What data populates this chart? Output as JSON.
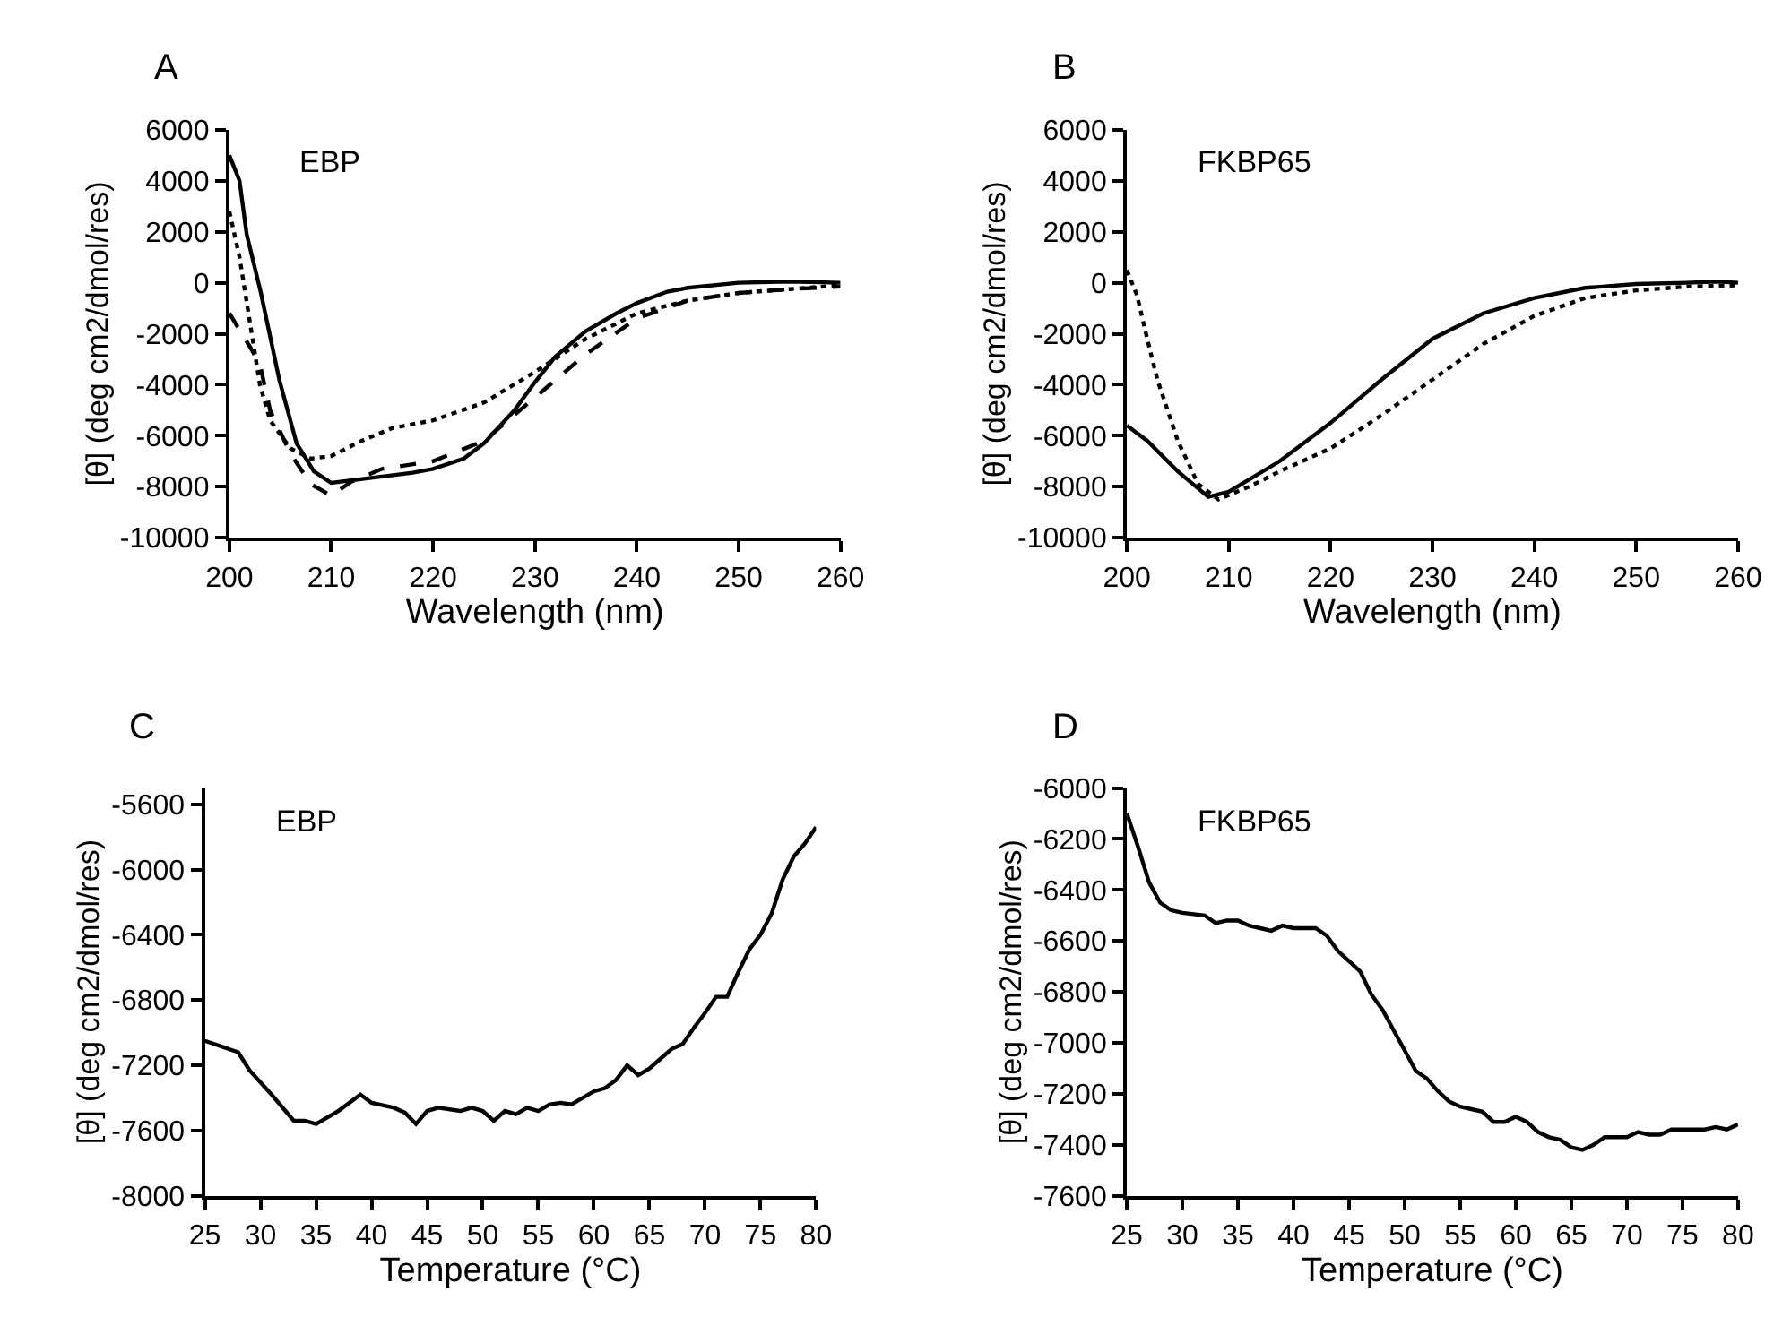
{
  "chart_data": [
    {
      "type": "line",
      "title": "A",
      "annotations": [
        "EBP"
      ],
      "xlabel": "Wavelength (nm)",
      "ylabel": "[θ] (deg cm2/dmol/res)",
      "xlim": [
        200,
        260
      ],
      "xticks": [
        200,
        210,
        220,
        230,
        240,
        250,
        260
      ],
      "ylim": [
        -10000,
        6000
      ],
      "yticks": [
        -10000,
        -8000,
        -6000,
        -4000,
        -2000,
        0,
        2000,
        4000,
        6000
      ],
      "series": [
        {
          "color": "#000000",
          "line_style": "solid",
          "x": [
            200,
            201,
            201.7,
            203.1,
            204.9,
            206.6,
            208.3,
            210,
            212,
            215,
            218,
            220,
            223,
            225,
            228,
            230,
            232,
            235,
            238,
            240,
            243,
            245,
            250,
            255,
            260
          ],
          "values": [
            5000,
            4000,
            1900,
            -400,
            -3800,
            -6300,
            -7400,
            -7850,
            -7750,
            -7600,
            -7450,
            -7300,
            -6900,
            -6300,
            -5000,
            -3900,
            -2900,
            -1900,
            -1200,
            -800,
            -350,
            -200,
            0,
            50,
            0
          ]
        },
        {
          "color": "#000000",
          "line_style": "dashed",
          "x": [
            200,
            202,
            203,
            204,
            206,
            208,
            210,
            212,
            215,
            220,
            225,
            230,
            235,
            240,
            245,
            250,
            255,
            260
          ],
          "values": [
            -1200,
            -2500,
            -3200,
            -5000,
            -6700,
            -7900,
            -8350,
            -7800,
            -7300,
            -7000,
            -6200,
            -4500,
            -2800,
            -1400,
            -700,
            -400,
            -250,
            -150
          ]
        },
        {
          "color": "#000000",
          "line_style": "dotted",
          "x": [
            200,
            201,
            202,
            203,
            204,
            206,
            208,
            210,
            213,
            216,
            220,
            225,
            230,
            235,
            240,
            245,
            250,
            255,
            260
          ],
          "values": [
            2800,
            1000,
            -1500,
            -4000,
            -5400,
            -6500,
            -6900,
            -6800,
            -6200,
            -5700,
            -5400,
            -4700,
            -3500,
            -2200,
            -1200,
            -700,
            -400,
            -250,
            -100
          ]
        }
      ]
    },
    {
      "type": "line",
      "title": "B",
      "annotations": [
        "FKBP65"
      ],
      "xlabel": "Wavelength (nm)",
      "ylabel": "[θ] (deg cm2/dmol/res)",
      "xlim": [
        200,
        260
      ],
      "xticks": [
        200,
        210,
        220,
        230,
        240,
        250,
        260
      ],
      "ylim": [
        -10000,
        6000
      ],
      "yticks": [
        -10000,
        -8000,
        -6000,
        -4000,
        -2000,
        0,
        2000,
        4000,
        6000
      ],
      "series": [
        {
          "color": "#000000",
          "line_style": "solid",
          "x": [
            200,
            202,
            205,
            208,
            210,
            215,
            220,
            225,
            230,
            235,
            240,
            245,
            250,
            255,
            258,
            260
          ],
          "values": [
            -5600,
            -6200,
            -7400,
            -8400,
            -8200,
            -7000,
            -5500,
            -3800,
            -2200,
            -1200,
            -600,
            -200,
            -50,
            0,
            50,
            0
          ]
        },
        {
          "color": "#000000",
          "line_style": "dotted",
          "x": [
            200,
            201,
            202,
            203,
            204,
            205,
            207,
            209,
            212,
            215,
            220,
            225,
            230,
            235,
            240,
            245,
            250,
            255,
            260
          ],
          "values": [
            500,
            -500,
            -2200,
            -3800,
            -5000,
            -6200,
            -7900,
            -8500,
            -8000,
            -7400,
            -6500,
            -5200,
            -3800,
            -2400,
            -1300,
            -600,
            -300,
            -150,
            -100
          ]
        }
      ]
    },
    {
      "type": "line",
      "title": "C",
      "annotations": [
        "EBP"
      ],
      "xlabel": "Temperature (°C)",
      "ylabel": "[θ] (deg cm2/dmol/res)",
      "xlim": [
        25,
        80
      ],
      "xticks": [
        25,
        30,
        35,
        40,
        45,
        50,
        55,
        60,
        65,
        70,
        75,
        80
      ],
      "ylim": [
        -8000,
        -5500
      ],
      "yticks": [
        -8000,
        -7600,
        -7200,
        -6800,
        -6400,
        -6000,
        -5600
      ],
      "series": [
        {
          "color": "#000000",
          "line_style": "solid",
          "x": [
            25,
            28,
            29,
            31,
            33,
            34,
            35,
            37,
            39,
            40,
            42,
            43,
            44,
            45,
            46,
            48,
            49,
            50,
            51,
            52,
            53,
            54,
            55,
            56,
            57,
            58,
            59,
            60,
            61,
            62,
            63,
            64,
            65,
            66,
            67,
            68,
            69,
            70,
            71,
            72,
            73,
            74,
            75,
            76,
            77,
            78,
            79,
            80
          ],
          "values": [
            -7050,
            -7120,
            -7230,
            -7380,
            -7540,
            -7540,
            -7560,
            -7480,
            -7380,
            -7430,
            -7460,
            -7490,
            -7560,
            -7480,
            -7460,
            -7480,
            -7460,
            -7480,
            -7540,
            -7480,
            -7500,
            -7460,
            -7480,
            -7440,
            -7430,
            -7440,
            -7400,
            -7360,
            -7340,
            -7290,
            -7200,
            -7260,
            -7220,
            -7160,
            -7100,
            -7070,
            -6970,
            -6880,
            -6780,
            -6780,
            -6630,
            -6490,
            -6400,
            -6270,
            -6060,
            -5920,
            -5840,
            -5740
          ]
        }
      ]
    },
    {
      "type": "line",
      "title": "D",
      "annotations": [
        "FKBP65"
      ],
      "xlabel": "Temperature (°C)",
      "ylabel": "[θ] (deg cm2/dmol/res)",
      "xlim": [
        25,
        80
      ],
      "xticks": [
        25,
        30,
        35,
        40,
        45,
        50,
        55,
        60,
        65,
        70,
        75,
        80
      ],
      "ylim": [
        -7600,
        -6000
      ],
      "yticks": [
        -7600,
        -7400,
        -7200,
        -7000,
        -6800,
        -6600,
        -6400,
        -6200,
        -6000
      ],
      "series": [
        {
          "color": "#000000",
          "line_style": "solid",
          "x": [
            25,
            26,
            27,
            28,
            29,
            30,
            32,
            33,
            34,
            35,
            36,
            37,
            38,
            39,
            40,
            42,
            43,
            44,
            45,
            46,
            47,
            48,
            49,
            50,
            51,
            52,
            53,
            54,
            55,
            56,
            57,
            58,
            59,
            60,
            61,
            62,
            63,
            64,
            65,
            66,
            67,
            68,
            69,
            70,
            71,
            72,
            73,
            74,
            75,
            76,
            77,
            78,
            79,
            80
          ],
          "values": [
            -6100,
            -6230,
            -6370,
            -6450,
            -6480,
            -6490,
            -6500,
            -6530,
            -6520,
            -6520,
            -6540,
            -6550,
            -6560,
            -6540,
            -6550,
            -6550,
            -6580,
            -6640,
            -6680,
            -6720,
            -6810,
            -6870,
            -6950,
            -7030,
            -7110,
            -7140,
            -7190,
            -7230,
            -7250,
            -7260,
            -7270,
            -7310,
            -7310,
            -7290,
            -7310,
            -7350,
            -7370,
            -7380,
            -7410,
            -7420,
            -7400,
            -7370,
            -7370,
            -7370,
            -7350,
            -7360,
            -7360,
            -7340,
            -7340,
            -7340,
            -7340,
            -7330,
            -7340,
            -7320
          ]
        }
      ]
    }
  ]
}
